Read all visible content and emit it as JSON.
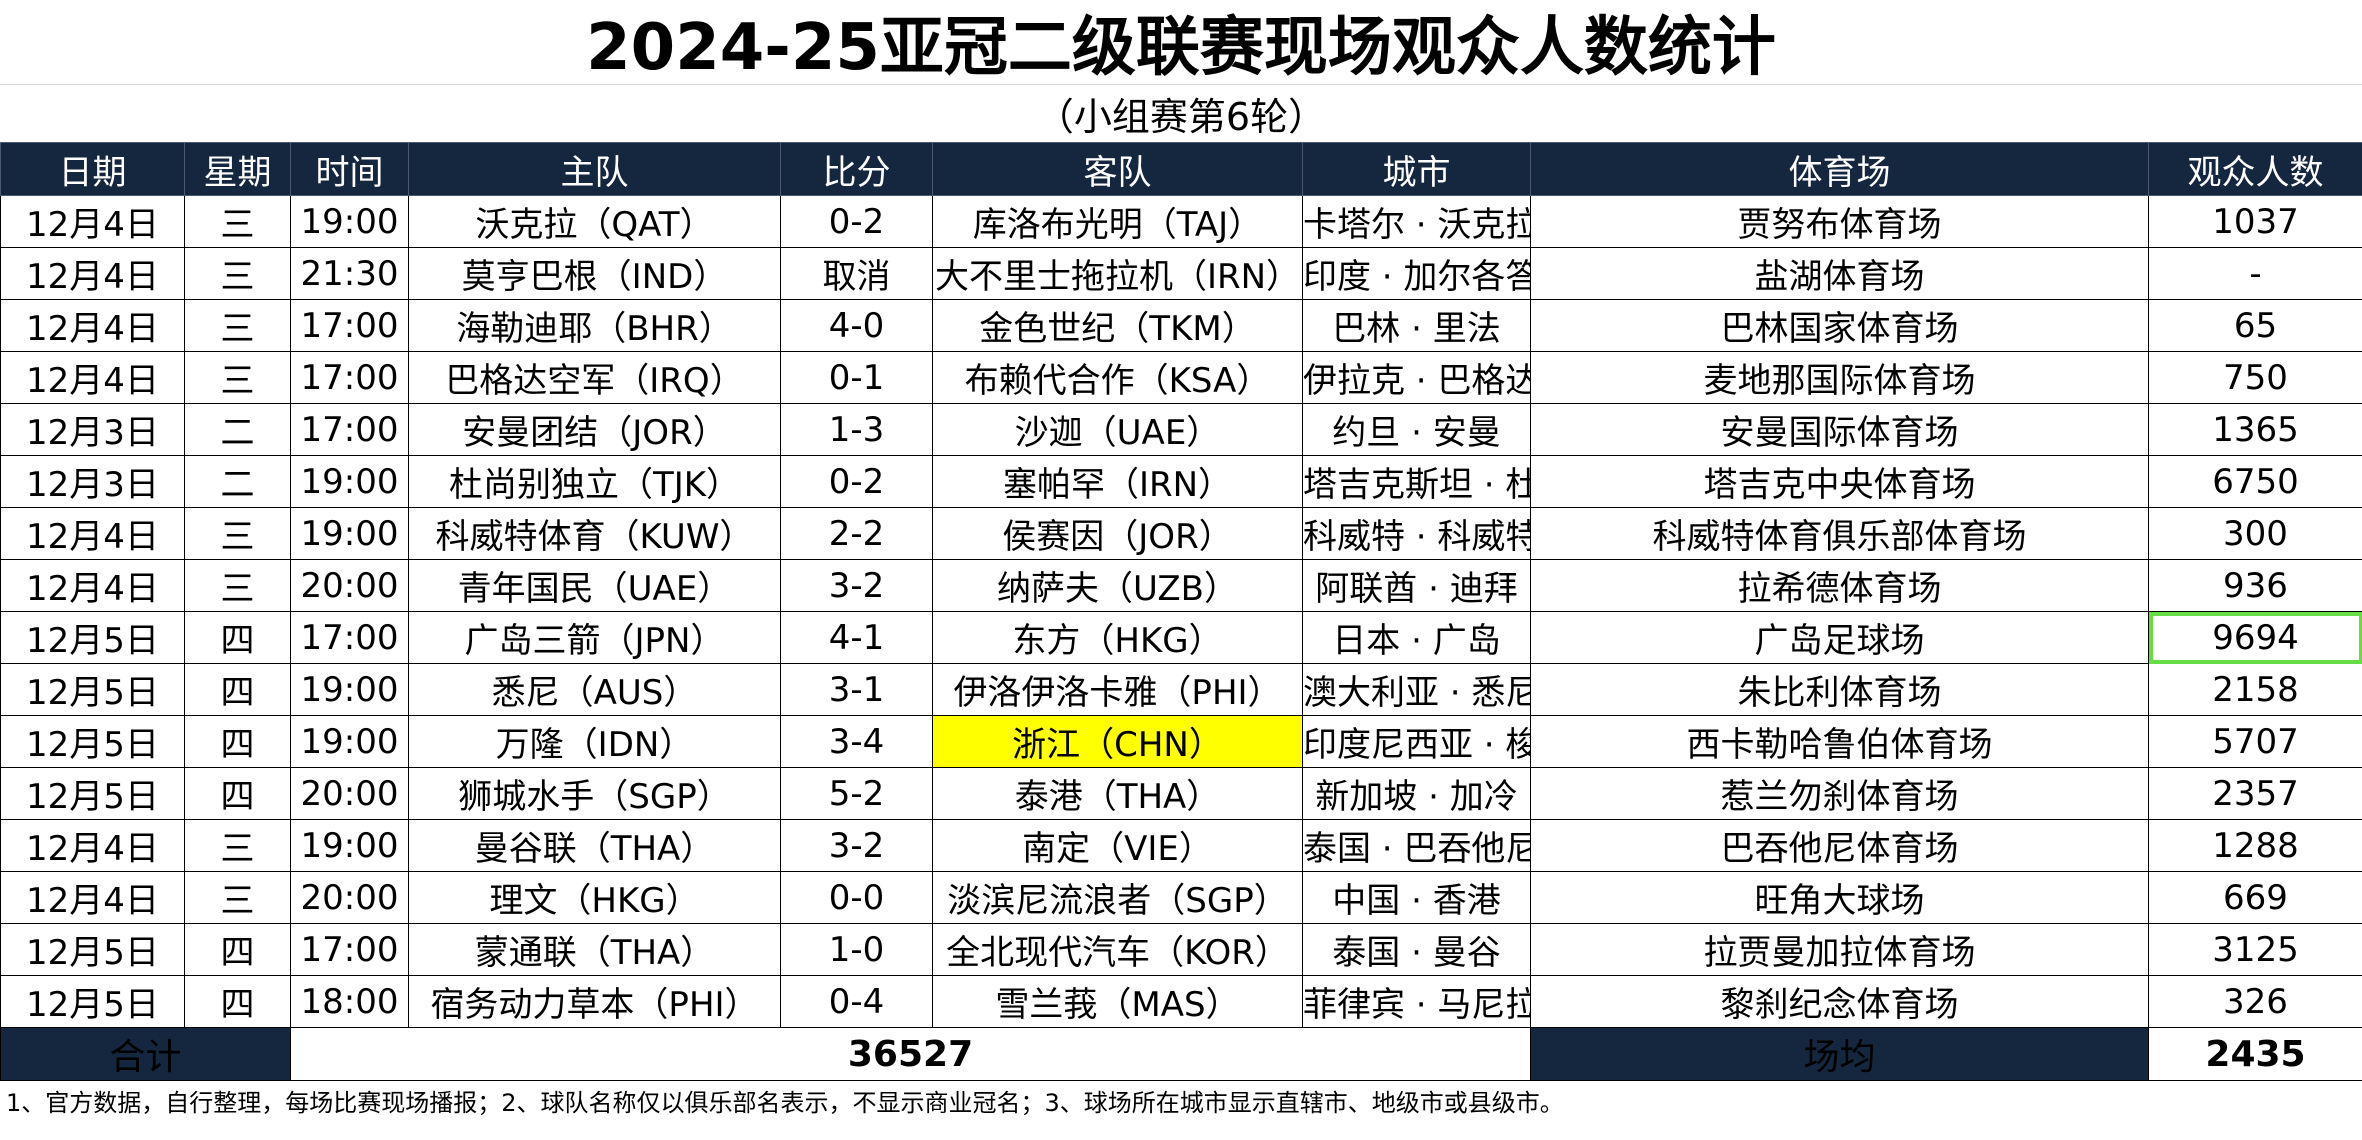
{
  "title": "2024-25亚冠二级联赛现场观众人数统计",
  "subtitle": "（小组赛第6轮）",
  "headers": [
    "日期",
    "星期",
    "时间",
    "主队",
    "比分",
    "客队",
    "城市",
    "体育场",
    "观众人数"
  ],
  "rows": [
    {
      "date": "12月4日",
      "weekday": "三",
      "time": "19:00",
      "home": "沃克拉（QAT）",
      "score": "0-2",
      "away": "库洛布光明（TAJ）",
      "city": "卡塔尔 · 沃克拉",
      "stadium": "贾努布体育场",
      "attendance": "1037"
    },
    {
      "date": "12月4日",
      "weekday": "三",
      "time": "21:30",
      "home": "莫亨巴根（IND）",
      "score": "取消",
      "away": "大不里士拖拉机（IRN）",
      "city": "印度 · 加尔各答",
      "stadium": "盐湖体育场",
      "attendance": "-"
    },
    {
      "date": "12月4日",
      "weekday": "三",
      "time": "17:00",
      "home": "海勒迪耶（BHR）",
      "score": "4-0",
      "away": "金色世纪（TKM）",
      "city": "巴林 · 里法",
      "stadium": "巴林国家体育场",
      "attendance": "65"
    },
    {
      "date": "12月4日",
      "weekday": "三",
      "time": "17:00",
      "home": "巴格达空军（IRQ）",
      "score": "0-1",
      "away": "布赖代合作（KSA）",
      "city": "伊拉克 · 巴格达",
      "stadium": "麦地那国际体育场",
      "attendance": "750"
    },
    {
      "date": "12月3日",
      "weekday": "二",
      "time": "17:00",
      "home": "安曼团结（JOR）",
      "score": "1-3",
      "away": "沙迦（UAE）",
      "city": "约旦 · 安曼",
      "stadium": "安曼国际体育场",
      "attendance": "1365"
    },
    {
      "date": "12月3日",
      "weekday": "二",
      "time": "19:00",
      "home": "杜尚别独立（TJK）",
      "score": "0-2",
      "away": "塞帕罕（IRN）",
      "city": "塔吉克斯坦 · 杜尚别",
      "stadium": "塔吉克中央体育场",
      "attendance": "6750"
    },
    {
      "date": "12月4日",
      "weekday": "三",
      "time": "19:00",
      "home": "科威特体育（KUW）",
      "score": "2-2",
      "away": "侯赛因（JOR）",
      "city": "科威特 · 科威特城",
      "stadium": "科威特体育俱乐部体育场",
      "attendance": "300"
    },
    {
      "date": "12月4日",
      "weekday": "三",
      "time": "20:00",
      "home": "青年国民（UAE）",
      "score": "3-2",
      "away": "纳萨夫（UZB）",
      "city": "阿联酋 · 迪拜",
      "stadium": "拉希德体育场",
      "attendance": "936"
    },
    {
      "date": "12月5日",
      "weekday": "四",
      "time": "17:00",
      "home": "广岛三箭（JPN）",
      "score": "4-1",
      "away": "东方（HKG）",
      "city": "日本 · 广岛",
      "stadium": "广岛足球场",
      "attendance": "9694"
    },
    {
      "date": "12月5日",
      "weekday": "四",
      "time": "19:00",
      "home": "悉尼（AUS）",
      "score": "3-1",
      "away": "伊洛伊洛卡雅（PHI）",
      "city": "澳大利亚 · 悉尼",
      "stadium": "朱比利体育场",
      "attendance": "2158"
    },
    {
      "date": "12月5日",
      "weekday": "四",
      "time": "19:00",
      "home": "万隆（IDN）",
      "score": "3-4",
      "away": "浙江（CHN）",
      "city": "印度尼西亚 · 梭里昂",
      "stadium": "西卡勒哈鲁伯体育场",
      "attendance": "5707"
    },
    {
      "date": "12月5日",
      "weekday": "四",
      "time": "20:00",
      "home": "狮城水手（SGP）",
      "score": "5-2",
      "away": "泰港（THA）",
      "city": "新加坡 · 加冷",
      "stadium": "惹兰勿刹体育场",
      "attendance": "2357"
    },
    {
      "date": "12月4日",
      "weekday": "三",
      "time": "19:00",
      "home": "曼谷联（THA）",
      "score": "3-2",
      "away": "南定（VIE）",
      "city": "泰国 · 巴吞他尼",
      "stadium": "巴吞他尼体育场",
      "attendance": "1288"
    },
    {
      "date": "12月4日",
      "weekday": "三",
      "time": "20:00",
      "home": "理文（HKG）",
      "score": "0-0",
      "away": "淡滨尼流浪者（SGP）",
      "city": "中国 · 香港",
      "stadium": "旺角大球场",
      "attendance": "669"
    },
    {
      "date": "12月5日",
      "weekday": "四",
      "time": "17:00",
      "home": "蒙通联（THA）",
      "score": "1-0",
      "away": "全北现代汽车（KOR）",
      "city": "泰国 · 曼谷",
      "stadium": "拉贾曼加拉体育场",
      "attendance": "3125"
    },
    {
      "date": "12月5日",
      "weekday": "四",
      "time": "18:00",
      "home": "宿务动力草本（PHI）",
      "score": "0-4",
      "away": "雪兰莪（MAS）",
      "city": "菲律宾 · 马尼拉",
      "stadium": "黎刹纪念体育场",
      "attendance": "326"
    }
  ],
  "footer": {
    "total_label": "合计",
    "total_value": "36527",
    "avg_label": "场均",
    "avg_value": "2435"
  },
  "note": "1、官方数据，自行整理，每场比赛现场播报；2、球队名称仅以俱乐部名表示，不显示商业冠名；3、球场所在城市显示直辖市、地级市或县级市。",
  "colors": {
    "header_bg": "#15263f",
    "highlight_yellow": "#ffff00",
    "highlight_green_border": "#66dd44"
  },
  "highlights": {
    "yellow_cell": {
      "row": 10,
      "field": "away"
    },
    "green_cell": {
      "row": 8,
      "field": "attendance"
    }
  }
}
